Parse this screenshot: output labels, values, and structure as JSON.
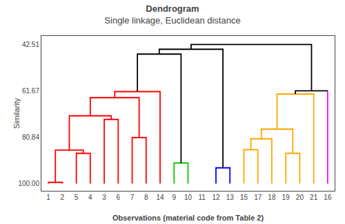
{
  "chart_data": {
    "type": "dendrogram",
    "title": "Dendrogram",
    "subtitle": "Single linkage, Euclidean distance",
    "xlabel": "Observations (material code from Table 2)",
    "ylabel": "Similarity",
    "categories": [
      "1",
      "2",
      "5",
      "4",
      "3",
      "6",
      "7",
      "8",
      "14",
      "9",
      "10",
      "11",
      "12",
      "13",
      "15",
      "17",
      "18",
      "19",
      "20",
      "21",
      "16"
    ],
    "leaf_height": 100.0,
    "links": [
      {
        "children": [
          0,
          1
        ],
        "height": 99.5,
        "color": "#FF0000"
      },
      {
        "children": [
          2,
          3
        ],
        "height": 87.5,
        "color": "#FF0000"
      },
      {
        "children": [
          21,
          22
        ],
        "height": 86.2,
        "color": "#FF0000"
      },
      {
        "children": [
          4,
          5
        ],
        "height": 73.5,
        "color": "#FF0000"
      },
      {
        "children": [
          23,
          24
        ],
        "height": 72.0,
        "color": "#FF0000"
      },
      {
        "children": [
          6,
          7
        ],
        "height": 81.0,
        "color": "#FF0000"
      },
      {
        "children": [
          25,
          26
        ],
        "height": 64.5,
        "color": "#FF0000"
      },
      {
        "children": [
          27,
          8
        ],
        "height": 62.0,
        "color": "#FF0000"
      },
      {
        "children": [
          9,
          10
        ],
        "height": 91.5,
        "color": "#00CC00"
      },
      {
        "children": [
          12,
          13
        ],
        "height": 93.5,
        "color": "#0000FF"
      },
      {
        "children": [
          28,
          29
        ],
        "height": 46.5,
        "color": "#000000"
      },
      {
        "children": [
          31,
          30
        ],
        "height": 44.5,
        "color": "#000000"
      },
      {
        "children": [
          14,
          15
        ],
        "height": 86.0,
        "color": "#FFA500"
      },
      {
        "children": [
          33,
          16
        ],
        "height": 81.5,
        "color": "#FFA500"
      },
      {
        "children": [
          17,
          18
        ],
        "height": 87.5,
        "color": "#FFA500"
      },
      {
        "children": [
          34,
          35
        ],
        "height": 77.5,
        "color": "#FFA500"
      },
      {
        "children": [
          36,
          19
        ],
        "height": 63.0,
        "color": "#FFA500"
      },
      {
        "children": [
          20
        ],
        "height": 61.67,
        "color": "#FF00FF"
      },
      {
        "children": [
          37,
          38
        ],
        "height": 61.67,
        "color": "#000000"
      },
      {
        "children": [
          32,
          39
        ],
        "height": 42.51,
        "color": "#000000"
      }
    ],
    "ylim": [
      103,
      39
    ],
    "yticks": [
      42.51,
      61.67,
      80.84,
      {
        "value": 100,
        "label": "100.00"
      }
    ],
    "grid": false
  }
}
